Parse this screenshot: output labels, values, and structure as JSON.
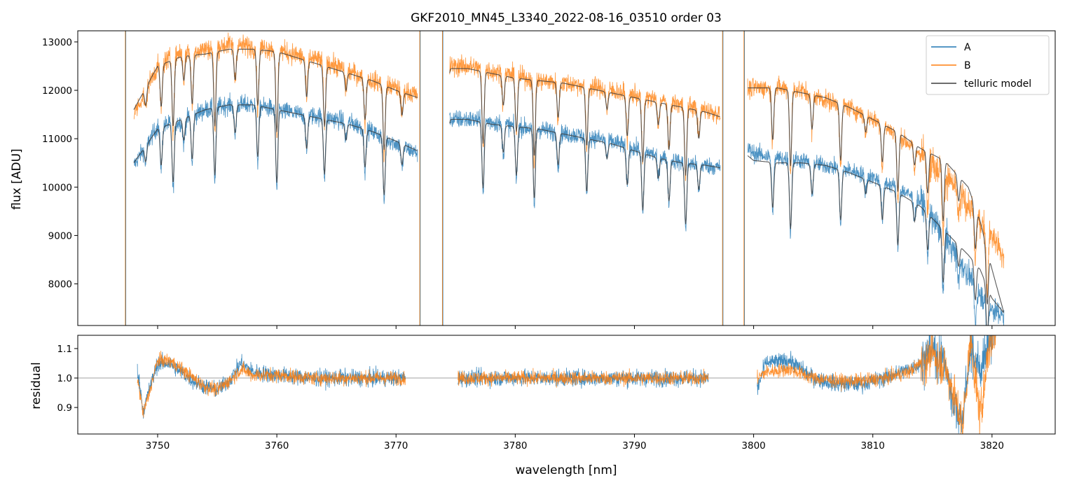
{
  "chart_data": [
    {
      "type": "line",
      "title": "GKF2010_MN45_L3340_2022-08-16_03510  order 03",
      "xlabel": "",
      "ylabel": "flux [ADU]",
      "xlim": [
        3743.3,
        3825.3
      ],
      "ylim": [
        7140,
        13230
      ],
      "x_ticks": [
        3750,
        3760,
        3770,
        3780,
        3790,
        3800,
        3810,
        3820
      ],
      "y_ticks": [
        8000,
        9000,
        10000,
        11000,
        12000,
        13000
      ],
      "y_tick_labels": [
        "8000",
        "9000",
        "10000",
        "11000",
        "12000",
        "13000"
      ],
      "legend_position": "top-right",
      "legend": [
        "A",
        "B",
        "telluric model"
      ],
      "segments": [
        {
          "x": [
            3748.0,
            3750,
            3752,
            3754,
            3756,
            3758,
            3760,
            3762,
            3764,
            3766,
            3768,
            3770,
            3771.8
          ],
          "A": [
            10450,
            11250,
            11350,
            11600,
            11700,
            11700,
            11600,
            11500,
            11450,
            11350,
            11150,
            10900,
            10700
          ],
          "B": [
            11500,
            12500,
            12800,
            12850,
            12950,
            12900,
            12850,
            12700,
            12600,
            12400,
            12200,
            12050,
            11900
          ],
          "model_A": [
            10500,
            11200,
            11400,
            11600,
            11700,
            11700,
            11600,
            11500,
            11400,
            11300,
            11150,
            10950,
            10750
          ],
          "model_B": [
            11600,
            12500,
            12700,
            12750,
            12850,
            12850,
            12800,
            12650,
            12500,
            12350,
            12200,
            12000,
            11850
          ]
        },
        {
          "x": [
            3774.5,
            3776,
            3778,
            3780,
            3782,
            3784,
            3786,
            3788,
            3790,
            3792,
            3794,
            3796,
            3797.2
          ],
          "A": [
            11400,
            11400,
            11350,
            11250,
            11200,
            11100,
            11050,
            10950,
            10800,
            10650,
            10500,
            10450,
            10400
          ],
          "B": [
            12500,
            12500,
            12400,
            12300,
            12200,
            12150,
            12100,
            12000,
            11900,
            11800,
            11700,
            11600,
            11500
          ],
          "model_A": [
            11400,
            11400,
            11300,
            11250,
            11200,
            11100,
            11000,
            10900,
            10750,
            10600,
            10500,
            10450,
            10400
          ],
          "model_B": [
            12450,
            12450,
            12350,
            12250,
            12200,
            12150,
            12050,
            11950,
            11850,
            11750,
            11650,
            11550,
            11450
          ]
        },
        {
          "x": [
            3799.5,
            3800,
            3802,
            3804,
            3806,
            3808,
            3810,
            3812,
            3814,
            3816,
            3818,
            3819,
            3820,
            3821
          ],
          "A": [
            10800,
            10700,
            10600,
            10550,
            10450,
            10350,
            10200,
            10000,
            9700,
            9000,
            8200,
            7800,
            7500,
            7300
          ],
          "B": [
            12000,
            12050,
            12050,
            12000,
            11800,
            11650,
            11400,
            11100,
            10700,
            10300,
            9600,
            9300,
            9000,
            8500
          ],
          "model_A": [
            10650,
            10550,
            10500,
            10500,
            10450,
            10300,
            10100,
            9900,
            9600,
            9100,
            8600,
            8300,
            7700,
            7400
          ],
          "model_B": [
            12050,
            12050,
            12050,
            11950,
            11850,
            11650,
            11400,
            11150,
            10800,
            10550,
            10000,
            9300,
            8300,
            7400
          ]
        }
      ],
      "vertical_spikes_x": [
        3747.3,
        3772.0,
        3773.9,
        3797.4,
        3799.2
      ],
      "absorption_lines_x": [
        3749.0,
        3750.3,
        3751.3,
        3752.2,
        3752.9,
        3754.8,
        3756.5,
        3758.4,
        3760.0,
        3762.5,
        3764.0,
        3765.8,
        3767.4,
        3769.0,
        3770.5,
        3774.3,
        3777.3,
        3779.0,
        3780.1,
        3781.6,
        3783.6,
        3786.0,
        3787.7,
        3789.4,
        3790.7,
        3792.0,
        3792.9,
        3794.3,
        3795.4,
        3801.6,
        3803.1,
        3804.9,
        3807.3,
        3809.4,
        3810.8,
        3812.1,
        3813.5,
        3814.6,
        3815.9,
        3817.2,
        3818.6,
        3819.6
      ]
    },
    {
      "type": "line",
      "title": "",
      "xlabel": "wavelength [nm]",
      "ylabel": "residual",
      "xlim": [
        3743.3,
        3825.3
      ],
      "ylim": [
        0.81,
        1.145
      ],
      "x_ticks": [
        3750,
        3760,
        3770,
        3780,
        3790,
        3800,
        3810,
        3820
      ],
      "y_ticks": [
        0.9,
        1.0,
        1.1
      ],
      "y_tick_labels": [
        "0.9",
        "1.0",
        "1.1"
      ],
      "reference_line_y": 1.0,
      "segments": [
        {
          "x": [
            3748.3,
            3748.8,
            3749.3,
            3750,
            3751,
            3752,
            3753,
            3754,
            3755,
            3756,
            3757,
            3758,
            3760,
            3763,
            3766,
            3770.8
          ],
          "A": [
            1.03,
            0.89,
            0.96,
            1.05,
            1.05,
            1.02,
            0.99,
            0.97,
            0.96,
            0.99,
            1.05,
            1.02,
            1.01,
            1.0,
            1.0,
            1.0
          ],
          "B": [
            1.0,
            0.88,
            0.95,
            1.06,
            1.06,
            1.03,
            1.0,
            0.97,
            0.96,
            0.99,
            1.03,
            1.01,
            1.01,
            1.0,
            1.0,
            1.0
          ]
        },
        {
          "x": [
            3775.2,
            3780,
            3785,
            3790,
            3796.2
          ],
          "A": [
            1.0,
            1.0,
            1.0,
            1.0,
            1.0
          ],
          "B": [
            1.0,
            1.0,
            1.0,
            1.0,
            1.0
          ]
        },
        {
          "x": [
            3800.3,
            3801,
            3803,
            3805,
            3807,
            3809,
            3811,
            3813,
            3814,
            3815,
            3816,
            3816.8,
            3817.5,
            3818.2,
            3819,
            3819.7,
            3820.3
          ],
          "A": [
            0.96,
            1.05,
            1.06,
            1.0,
            0.98,
            0.98,
            1.0,
            1.03,
            1.05,
            1.1,
            1.05,
            0.92,
            0.85,
            1.1,
            1.03,
            1.12,
            1.16
          ],
          "B": [
            1.0,
            1.02,
            1.03,
            1.0,
            0.99,
            0.99,
            1.0,
            1.02,
            1.05,
            1.08,
            1.04,
            0.95,
            0.83,
            1.13,
            0.86,
            1.1,
            1.16
          ]
        }
      ]
    }
  ],
  "colors": {
    "A": "#1f77b4",
    "B": "#ff7f0e",
    "telluric_model": "#3c3c3c",
    "reference_line": "#808080"
  }
}
